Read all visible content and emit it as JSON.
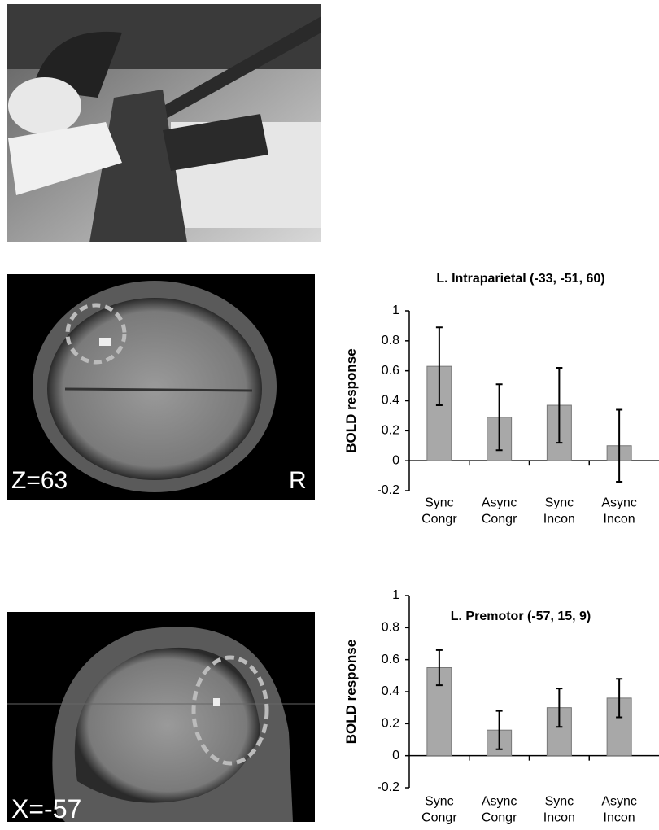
{
  "panels": {
    "axial_label": "Z=63",
    "axial_side": "R",
    "sagittal_label": "X=-57"
  },
  "chart_data": [
    {
      "type": "bar",
      "title": "L. Intraparietal (-33, -51, 60)",
      "ylabel": "BOLD response",
      "categories": [
        "Sync Congr",
        "Async Congr",
        "Sync Incon",
        "Async Incon"
      ],
      "values": [
        0.63,
        0.29,
        0.37,
        0.1
      ],
      "errors": [
        0.26,
        0.22,
        0.25,
        0.24
      ],
      "color": "#a8a8a8",
      "ylim": [
        -0.2,
        1
      ],
      "yticks": [
        -0.2,
        0,
        0.2,
        0.4,
        0.6,
        0.8,
        1
      ],
      "grid": false
    },
    {
      "type": "bar",
      "title": "L. Premotor (-57, 15, 9)",
      "ylabel": "BOLD response",
      "categories": [
        "Sync Congr",
        "Async Congr",
        "Sync Incon",
        "Async Incon"
      ],
      "values": [
        0.55,
        0.16,
        0.3,
        0.36
      ],
      "errors": [
        0.11,
        0.12,
        0.12,
        0.12
      ],
      "color": "#a8a8a8",
      "ylim": [
        -0.2,
        1
      ],
      "yticks": [
        -0.2,
        0,
        0.2,
        0.4,
        0.6,
        0.8,
        1
      ],
      "grid": false
    }
  ]
}
